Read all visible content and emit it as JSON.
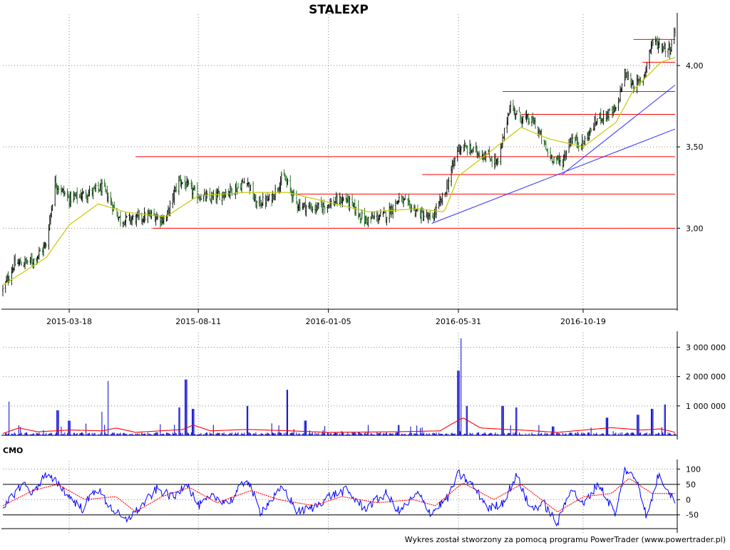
{
  "chart_data": [
    {
      "type": "candlestick",
      "title": "STALEXP",
      "x_tick_labels": [
        "2015-03-18",
        "2015-08-11",
        "2016-01-05",
        "2016-05-31",
        "2016-10-19"
      ],
      "y_tick_labels": [
        "3,00",
        "3,50",
        "4,00"
      ],
      "y_tick_values": [
        3.0,
        3.5,
        4.0
      ],
      "ylim": [
        2.52,
        4.28
      ],
      "date_range": [
        "2015-01-02",
        "2017-01-31"
      ],
      "grid": true,
      "colors": {
        "price": "#000000",
        "moving_average": "#c8c800",
        "horizontal_levels": "#ff0000",
        "trend_lines": "#3030ff"
      },
      "price_keypoints": [
        [
          "2015-01-02",
          2.62
        ],
        [
          "2015-01-15",
          2.78
        ],
        [
          "2015-02-05",
          2.8
        ],
        [
          "2015-02-20",
          2.9
        ],
        [
          "2015-03-02",
          3.28
        ],
        [
          "2015-03-18",
          3.18
        ],
        [
          "2015-04-10",
          3.22
        ],
        [
          "2015-04-25",
          3.25
        ],
        [
          "2015-05-15",
          3.05
        ],
        [
          "2015-06-01",
          3.06
        ],
        [
          "2015-06-20",
          3.08
        ],
        [
          "2015-07-05",
          3.05
        ],
        [
          "2015-07-20",
          3.3
        ],
        [
          "2015-08-11",
          3.2
        ],
        [
          "2015-08-25",
          3.18
        ],
        [
          "2015-09-10",
          3.22
        ],
        [
          "2015-09-25",
          3.25
        ],
        [
          "2015-10-05",
          3.3
        ],
        [
          "2015-10-15",
          3.15
        ],
        [
          "2015-11-01",
          3.18
        ],
        [
          "2015-11-15",
          3.32
        ],
        [
          "2015-12-01",
          3.15
        ],
        [
          "2015-12-20",
          3.12
        ],
        [
          "2016-01-05",
          3.15
        ],
        [
          "2016-01-25",
          3.18
        ],
        [
          "2016-02-15",
          3.05
        ],
        [
          "2016-03-10",
          3.08
        ],
        [
          "2016-03-25",
          3.18
        ],
        [
          "2016-04-15",
          3.1
        ],
        [
          "2016-04-30",
          3.05
        ],
        [
          "2016-05-15",
          3.2
        ],
        [
          "2016-05-31",
          3.5
        ],
        [
          "2016-06-15",
          3.48
        ],
        [
          "2016-07-01",
          3.45
        ],
        [
          "2016-07-15",
          3.4
        ],
        [
          "2016-07-28",
          3.75
        ],
        [
          "2016-08-10",
          3.68
        ],
        [
          "2016-08-25",
          3.65
        ],
        [
          "2016-09-10",
          3.45
        ],
        [
          "2016-09-25",
          3.4
        ],
        [
          "2016-10-05",
          3.55
        ],
        [
          "2016-10-19",
          3.52
        ],
        [
          "2016-11-05",
          3.68
        ],
        [
          "2016-11-25",
          3.72
        ],
        [
          "2016-12-05",
          3.95
        ],
        [
          "2016-12-15",
          3.88
        ],
        [
          "2016-12-25",
          3.9
        ],
        [
          "2017-01-05",
          4.15
        ],
        [
          "2017-01-15",
          4.12
        ],
        [
          "2017-01-25",
          4.1
        ],
        [
          "2017-01-31",
          4.22
        ]
      ],
      "moving_average_keypoints": [
        [
          "2015-01-02",
          2.65
        ],
        [
          "2015-02-20",
          2.82
        ],
        [
          "2015-03-18",
          3.02
        ],
        [
          "2015-04-20",
          3.15
        ],
        [
          "2015-05-20",
          3.1
        ],
        [
          "2015-07-05",
          3.07
        ],
        [
          "2015-08-11",
          3.2
        ],
        [
          "2015-10-05",
          3.22
        ],
        [
          "2015-11-20",
          3.22
        ],
        [
          "2016-01-05",
          3.16
        ],
        [
          "2016-02-20",
          3.1
        ],
        [
          "2016-04-15",
          3.12
        ],
        [
          "2016-05-15",
          3.1
        ],
        [
          "2016-05-31",
          3.32
        ],
        [
          "2016-07-01",
          3.45
        ],
        [
          "2016-08-10",
          3.62
        ],
        [
          "2016-09-10",
          3.55
        ],
        [
          "2016-10-19",
          3.5
        ],
        [
          "2016-11-25",
          3.65
        ],
        [
          "2016-12-15",
          3.85
        ],
        [
          "2017-01-15",
          4.02
        ],
        [
          "2017-01-31",
          4.05
        ]
      ],
      "horizontal_levels": [
        {
          "price": 3.0,
          "from": "2015-06-20",
          "to": "2017-01-31"
        },
        {
          "price": 3.21,
          "from": "2015-12-01",
          "to": "2017-01-31"
        },
        {
          "price": 3.33,
          "from": "2016-04-20",
          "to": "2017-01-31"
        },
        {
          "price": 3.44,
          "from": "2015-06-01",
          "to": "2017-01-31"
        },
        {
          "price": 3.7,
          "from": "2016-08-10",
          "to": "2017-01-31"
        },
        {
          "price": 3.84,
          "from": "2016-07-20",
          "to": "2017-01-31"
        },
        {
          "price": 4.02,
          "from": "2016-12-25",
          "to": "2017-01-31"
        },
        {
          "price": 4.16,
          "from": "2016-12-15",
          "to": "2017-01-31"
        }
      ],
      "trend_lines": [
        {
          "from": [
            "2016-05-01",
            3.03
          ],
          "to": [
            "2017-01-31",
            3.61
          ]
        },
        {
          "from": [
            "2016-09-25",
            3.33
          ],
          "to": [
            "2017-01-31",
            3.88
          ]
        }
      ]
    },
    {
      "type": "bar",
      "series_name": "volume",
      "y_tick_labels": [
        "1 000 000",
        "2 000 000",
        "3 000 000"
      ],
      "y_tick_values": [
        1000000,
        2000000,
        3000000
      ],
      "ylim": [
        0,
        3300000
      ],
      "grid": true,
      "colors": {
        "bars": "#0000cc",
        "moving_average": "#ff0000"
      },
      "baseline_volume": 60000,
      "spikes": [
        [
          "2015-01-10",
          1150000
        ],
        [
          "2015-03-05",
          850000
        ],
        [
          "2015-03-18",
          500000
        ],
        [
          "2015-04-05",
          400000
        ],
        [
          "2015-04-25",
          800000
        ],
        [
          "2015-05-02",
          1850000
        ],
        [
          "2015-07-20",
          950000
        ],
        [
          "2015-07-28",
          1900000
        ],
        [
          "2015-08-05",
          900000
        ],
        [
          "2015-10-05",
          1000000
        ],
        [
          "2015-11-20",
          1550000
        ],
        [
          "2015-12-10",
          500000
        ],
        [
          "2016-02-20",
          350000
        ],
        [
          "2016-03-25",
          350000
        ],
        [
          "2016-05-31",
          2200000
        ],
        [
          "2016-06-04",
          3300000
        ],
        [
          "2016-06-10",
          1000000
        ],
        [
          "2016-07-20",
          1000000
        ],
        [
          "2016-08-05",
          950000
        ],
        [
          "2016-09-15",
          300000
        ],
        [
          "2016-11-15",
          600000
        ],
        [
          "2016-12-20",
          700000
        ],
        [
          "2017-01-05",
          900000
        ],
        [
          "2017-01-20",
          1050000
        ]
      ],
      "moving_average_keypoints": [
        [
          "2015-01-02",
          60000
        ],
        [
          "2015-01-20",
          250000
        ],
        [
          "2015-02-10",
          120000
        ],
        [
          "2015-03-20",
          180000
        ],
        [
          "2015-04-25",
          150000
        ],
        [
          "2015-05-10",
          250000
        ],
        [
          "2015-06-01",
          100000
        ],
        [
          "2015-07-25",
          200000
        ],
        [
          "2015-08-05",
          350000
        ],
        [
          "2015-08-25",
          150000
        ],
        [
          "2015-10-05",
          200000
        ],
        [
          "2015-11-25",
          150000
        ],
        [
          "2016-01-05",
          100000
        ],
        [
          "2016-03-20",
          120000
        ],
        [
          "2016-05-10",
          150000
        ],
        [
          "2016-06-05",
          600000
        ],
        [
          "2016-06-25",
          250000
        ],
        [
          "2016-07-25",
          200000
        ],
        [
          "2016-08-10",
          180000
        ],
        [
          "2016-09-20",
          100000
        ],
        [
          "2016-11-20",
          260000
        ],
        [
          "2016-12-25",
          180000
        ],
        [
          "2017-01-15",
          220000
        ],
        [
          "2017-01-31",
          100000
        ]
      ]
    },
    {
      "type": "line",
      "series_name": "CMO",
      "title": "CMO",
      "y_tick_labels": [
        "100",
        "50",
        "0",
        "-50"
      ],
      "y_tick_values": [
        100,
        50,
        0,
        -50
      ],
      "ylim": [
        -95,
        108
      ],
      "reference_lines": [
        50,
        -50
      ],
      "grid": true,
      "colors": {
        "cmo": "#0000ff",
        "signal": "#ff0000",
        "reference": "#000000"
      },
      "cmo_keypoints": [
        [
          "2015-01-02",
          -40
        ],
        [
          "2015-01-12",
          10
        ],
        [
          "2015-01-25",
          55
        ],
        [
          "2015-02-05",
          20
        ],
        [
          "2015-02-18",
          80
        ],
        [
          "2015-03-05",
          55
        ],
        [
          "2015-03-18",
          10
        ],
        [
          "2015-04-02",
          -30
        ],
        [
          "2015-04-18",
          40
        ],
        [
          "2015-05-02",
          -20
        ],
        [
          "2015-05-20",
          -70
        ],
        [
          "2015-06-05",
          -30
        ],
        [
          "2015-06-25",
          35
        ],
        [
          "2015-07-15",
          5
        ],
        [
          "2015-07-28",
          60
        ],
        [
          "2015-08-11",
          -20
        ],
        [
          "2015-08-28",
          10
        ],
        [
          "2015-09-15",
          -10
        ],
        [
          "2015-10-05",
          70
        ],
        [
          "2015-10-20",
          -40
        ],
        [
          "2015-11-15",
          40
        ],
        [
          "2015-12-01",
          -40
        ],
        [
          "2015-12-20",
          -25
        ],
        [
          "2016-01-05",
          10
        ],
        [
          "2016-01-25",
          30
        ],
        [
          "2016-02-15",
          -30
        ],
        [
          "2016-03-10",
          20
        ],
        [
          "2016-03-25",
          -40
        ],
        [
          "2016-04-15",
          20
        ],
        [
          "2016-04-30",
          -45
        ],
        [
          "2016-05-20",
          10
        ],
        [
          "2016-05-31",
          85
        ],
        [
          "2016-06-15",
          50
        ],
        [
          "2016-07-05",
          -30
        ],
        [
          "2016-07-20",
          -10
        ],
        [
          "2016-08-05",
          80
        ],
        [
          "2016-08-20",
          -30
        ],
        [
          "2016-09-05",
          -15
        ],
        [
          "2016-09-20",
          -80
        ],
        [
          "2016-10-05",
          40
        ],
        [
          "2016-10-19",
          -20
        ],
        [
          "2016-11-05",
          55
        ],
        [
          "2016-11-25",
          -50
        ],
        [
          "2016-12-05",
          100
        ],
        [
          "2016-12-20",
          60
        ],
        [
          "2016-12-30",
          -60
        ],
        [
          "2017-01-12",
          80
        ],
        [
          "2017-01-24",
          30
        ],
        [
          "2017-01-31",
          -10
        ]
      ],
      "signal_keypoints": [
        [
          "2015-01-02",
          -20
        ],
        [
          "2015-02-05",
          30
        ],
        [
          "2015-03-05",
          50
        ],
        [
          "2015-04-05",
          0
        ],
        [
          "2015-05-10",
          10
        ],
        [
          "2015-06-01",
          -40
        ],
        [
          "2015-07-01",
          10
        ],
        [
          "2015-08-01",
          40
        ],
        [
          "2015-09-01",
          -10
        ],
        [
          "2015-10-10",
          30
        ],
        [
          "2015-11-10",
          0
        ],
        [
          "2015-12-20",
          -20
        ],
        [
          "2016-01-20",
          10
        ],
        [
          "2016-03-01",
          -10
        ],
        [
          "2016-04-10",
          0
        ],
        [
          "2016-05-05",
          -20
        ],
        [
          "2016-06-05",
          55
        ],
        [
          "2016-07-10",
          0
        ],
        [
          "2016-08-10",
          50
        ],
        [
          "2016-09-20",
          -40
        ],
        [
          "2016-10-20",
          10
        ],
        [
          "2016-11-20",
          20
        ],
        [
          "2016-12-10",
          70
        ],
        [
          "2017-01-05",
          20
        ],
        [
          "2017-01-31",
          20
        ]
      ]
    }
  ],
  "footer": {
    "credit": "Wykres został stworzony za pomocą programu PowerTrader (www.powertrader.pl)"
  }
}
